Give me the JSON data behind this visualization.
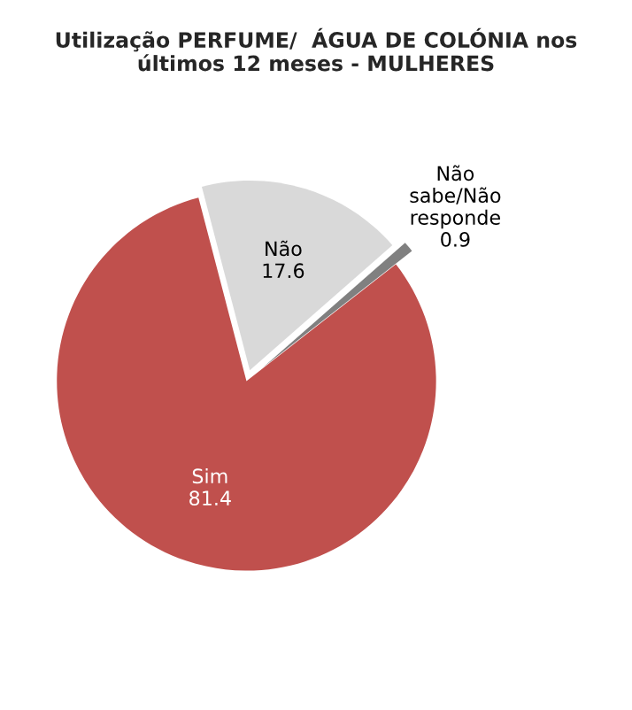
{
  "chart_data": {
    "type": "pie",
    "title": "Utilização PERFUME/  ÁGUA DE COLÓNIA nos\núltimos 12 meses - MULHERES",
    "categories": [
      "Sim",
      "Não",
      "Não\nsabe/Não\nresponde"
    ],
    "values": [
      81.4,
      17.6,
      0.9
    ],
    "colors": [
      "#c0504d",
      "#d9d9d9",
      "#808080"
    ],
    "data_labels": true,
    "legend": false
  }
}
